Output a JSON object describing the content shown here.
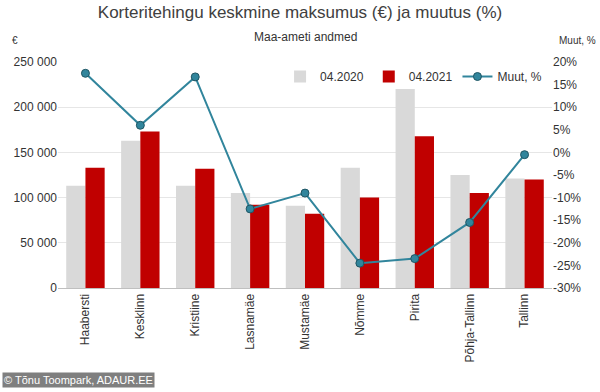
{
  "chart_data": {
    "type": "bar",
    "title": "Korteritehingu keskmine maksumus (€) ja muutus (%)",
    "subtitle": "Maa-ameti andmed",
    "ylabel": "€",
    "y2label": "Muut, %",
    "source": "© Tõnu Toompark, ADAUR.EE",
    "categories": [
      "Haabersti",
      "Kesklinn",
      "Kristiine",
      "Lasnamäe",
      "Mustamäe",
      "Nõmme",
      "Pirita",
      "Põhja-Tallinn",
      "Tallinn"
    ],
    "series": [
      {
        "name": "04.2020",
        "color": "#d9d9d9",
        "values": [
          113000,
          163000,
          113000,
          105000,
          91000,
          133000,
          220000,
          125000,
          121000
        ]
      },
      {
        "name": "04.2021",
        "color": "#c00000",
        "values": [
          133000,
          173000,
          132000,
          92000,
          82000,
          100000,
          168000,
          105000,
          120000
        ]
      },
      {
        "name": "Muut, %",
        "type": "line",
        "axis": "y2",
        "color": "#31859c",
        "marker": "circle",
        "values": [
          17.5,
          6,
          16.7,
          -12.5,
          -9,
          -24.5,
          -23.5,
          -15.5,
          -0.5
        ]
      }
    ],
    "ylim": [
      0,
      250000
    ],
    "yticks": [
      {
        "value": 0,
        "label": "0"
      },
      {
        "value": 50000,
        "label": "50 000"
      },
      {
        "value": 100000,
        "label": "100 000"
      },
      {
        "value": 150000,
        "label": "150 000"
      },
      {
        "value": 200000,
        "label": "200 000"
      },
      {
        "value": 250000,
        "label": "250 000"
      }
    ],
    "y2lim": [
      -30,
      20
    ],
    "y2ticks": [
      {
        "value": -30,
        "label": "-30%"
      },
      {
        "value": -25,
        "label": "-25%"
      },
      {
        "value": -20,
        "label": "-20%"
      },
      {
        "value": -15,
        "label": "-15%"
      },
      {
        "value": -10,
        "label": "-10%"
      },
      {
        "value": -5,
        "label": "-5%"
      },
      {
        "value": 0,
        "label": "0%"
      },
      {
        "value": 5,
        "label": "5%"
      },
      {
        "value": 10,
        "label": "10%"
      },
      {
        "value": 15,
        "label": "15%"
      },
      {
        "value": 20,
        "label": "20%"
      }
    ],
    "grid": true,
    "legend": "top"
  }
}
